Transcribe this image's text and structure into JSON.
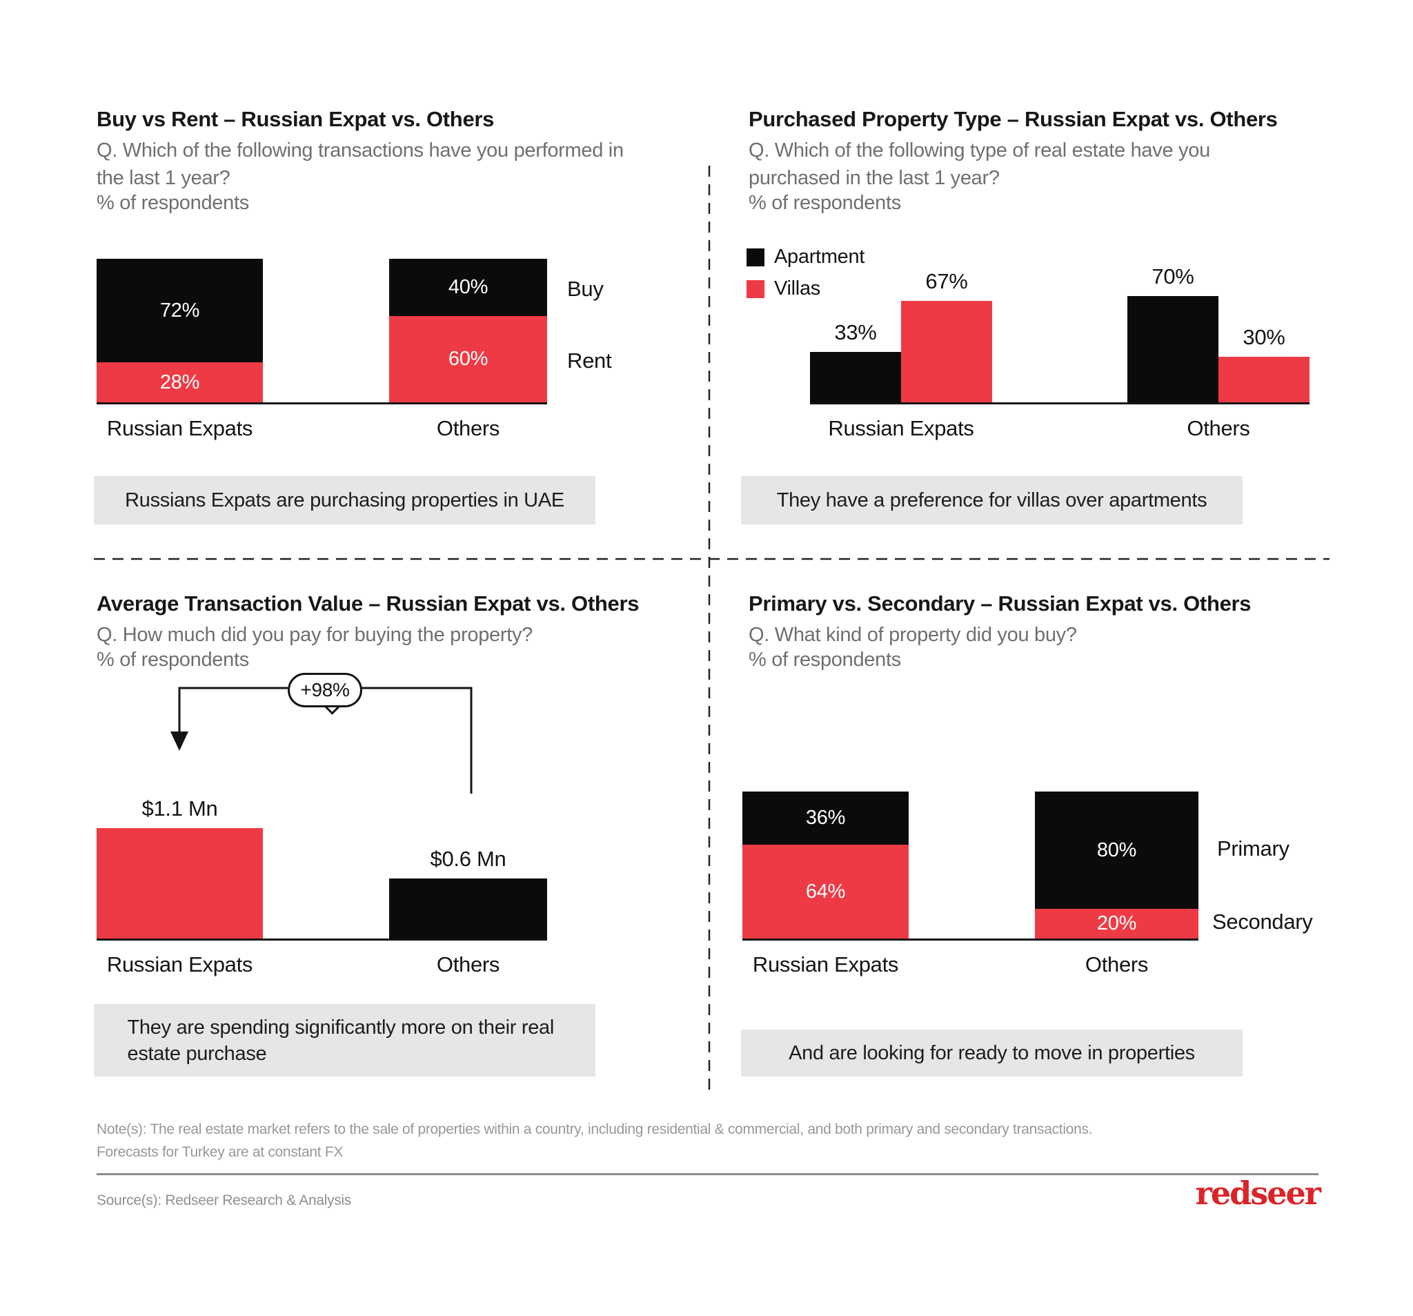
{
  "colors": {
    "accent_red": "#EE3A44",
    "bar_black": "#0B0B0B",
    "callout_bg": "#E6E6E6",
    "logo_red": "#DC2328",
    "subtitle_gray": "#6F6F6F"
  },
  "chart_data": [
    {
      "type": "bar",
      "subtype": "stacked-100",
      "title": "Buy vs Rent – Russian Expat vs. Others",
      "question": "Q. Which of the following transactions have you performed in the last 1 year?",
      "unit": "% of respondents",
      "categories": [
        "Russian Expats",
        "Others"
      ],
      "series": [
        {
          "name": "Buy",
          "color": "#0B0B0B",
          "values": [
            72,
            40
          ]
        },
        {
          "name": "Rent",
          "color": "#EE3A44",
          "values": [
            28,
            60
          ]
        }
      ],
      "value_labels": [
        [
          "72%",
          "40%"
        ],
        [
          "28%",
          "60%"
        ]
      ],
      "ylim": [
        0,
        100
      ],
      "legend_position": "right-of-bars",
      "grid": false,
      "callout": "Russians Expats are purchasing properties in UAE"
    },
    {
      "type": "bar",
      "subtype": "grouped",
      "title": "Purchased Property Type – Russian Expat vs. Others",
      "question": "Q. Which of the following type of real estate have you purchased in the last 1 year?",
      "unit": "% of respondents",
      "categories": [
        "Russian Expats",
        "Others"
      ],
      "series": [
        {
          "name": "Apartment",
          "color": "#0B0B0B",
          "values": [
            33,
            70
          ]
        },
        {
          "name": "Villas",
          "color": "#EE3A44",
          "values": [
            67,
            30
          ]
        }
      ],
      "value_labels": [
        [
          "33%",
          "70%"
        ],
        [
          "67%",
          "30%"
        ]
      ],
      "ylim": [
        0,
        100
      ],
      "legend_position": "top-left",
      "grid": false,
      "callout": "They have a preference for villas over apartments"
    },
    {
      "type": "bar",
      "subtype": "simple",
      "title": "Average Transaction Value – Russian Expat vs. Others",
      "question": "Q. How much did you pay for buying the property?",
      "unit": "% of respondents",
      "categories": [
        "Russian Expats",
        "Others"
      ],
      "values": [
        1.1,
        0.6
      ],
      "bar_colors": [
        "#EE3A44",
        "#0B0B0B"
      ],
      "value_labels": [
        "$1.1 Mn",
        "$0.6 Mn"
      ],
      "annotation": "+98%",
      "grid": false,
      "callout": "They are spending significantly more on their real estate purchase"
    },
    {
      "type": "bar",
      "subtype": "stacked-100",
      "title": "Primary vs. Secondary – Russian Expat vs. Others",
      "question": "Q. What kind of property did you buy?",
      "unit": "% of respondents",
      "categories": [
        "Russian Expats",
        "Others"
      ],
      "series": [
        {
          "name": "Primary",
          "color": "#0B0B0B",
          "values": [
            36,
            80
          ]
        },
        {
          "name": "Secondary",
          "color": "#EE3A44",
          "values": [
            64,
            20
          ]
        }
      ],
      "value_labels": [
        [
          "36%",
          "80%"
        ],
        [
          "64%",
          "20%"
        ]
      ],
      "ylim": [
        0,
        100
      ],
      "legend_position": "right-of-bars",
      "grid": false,
      "callout": "And are looking for ready to move in properties"
    }
  ],
  "footer": {
    "note": "Note(s): The real estate market refers to the sale of properties within a country, including residential & commercial, and both primary and secondary transactions. Forecasts for Turkey are at constant FX",
    "source": "Source(s): Redseer Research & Analysis",
    "logo": "redseer"
  }
}
